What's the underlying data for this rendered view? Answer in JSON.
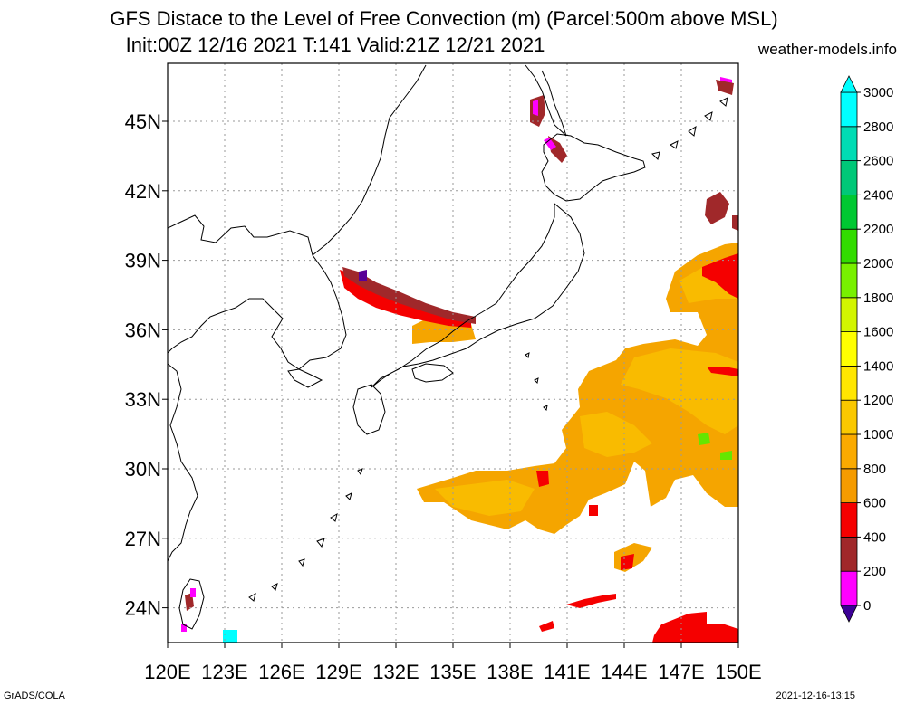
{
  "title_line1": "GFS Distace to the Level of Free Convection (m) (Parcel:500m above MSL)",
  "title_line2": "Init:00Z 12/16 2021 T:141 Valid:21Z 12/21 2021",
  "site": "weather-models.info",
  "credit": "GrADS/COLA",
  "timestamp": "2021-12-16-13:15",
  "axes": {
    "lon_labels": [
      "120E",
      "123E",
      "126E",
      "129E",
      "132E",
      "135E",
      "138E",
      "141E",
      "144E",
      "147E",
      "150E"
    ],
    "lon_values": [
      120,
      123,
      126,
      129,
      132,
      135,
      138,
      141,
      144,
      147,
      150
    ],
    "lat_labels": [
      "24N",
      "27N",
      "30N",
      "33N",
      "36N",
      "39N",
      "42N",
      "45N"
    ],
    "lat_values": [
      24,
      27,
      30,
      33,
      36,
      39,
      42,
      45
    ],
    "lon_range": [
      120,
      150
    ],
    "lat_range": [
      22.5,
      47.5
    ],
    "grid": true
  },
  "colorbar": {
    "labels": [
      "0",
      "200",
      "400",
      "600",
      "800",
      "1000",
      "1200",
      "1400",
      "1600",
      "1800",
      "2000",
      "2200",
      "2400",
      "2600",
      "2800",
      "3000"
    ],
    "colors": [
      "#3c0096",
      "#ff00ff",
      "#a0282a",
      "#f50000",
      "#f59b00",
      "#faaa00",
      "#fac800",
      "#ffe600",
      "#ffff00",
      "#d2f500",
      "#78f000",
      "#32dc00",
      "#00c832",
      "#00c878",
      "#00dcb4",
      "#00ffff"
    ],
    "under_color": "#3c0096",
    "over_color": "#00ffff"
  },
  "palette": {
    "orange": "#f5a500",
    "lorange": "#fac000",
    "red": "#f50000",
    "brown": "#a0282a",
    "magenta": "#ff00ff",
    "purple": "#5a0096",
    "green": "#64e600",
    "cyan": "#00ffff",
    "coast": "#000000",
    "gridline": "#9a9a9a"
  }
}
